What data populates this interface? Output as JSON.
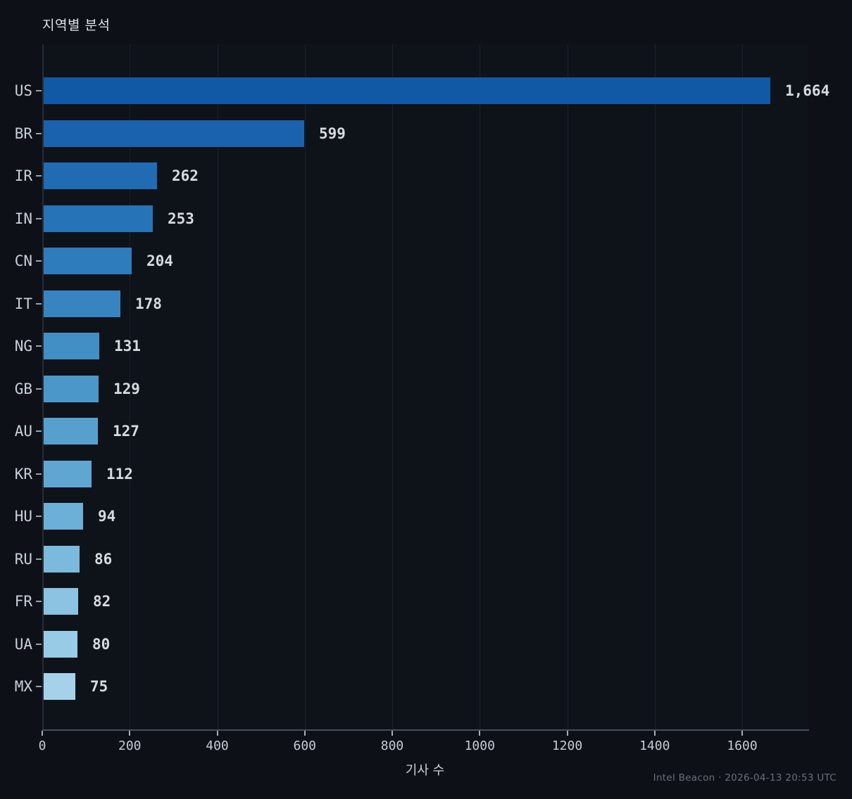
{
  "chart": {
    "title": "지역별 분석",
    "xlabel": "기사 수"
  },
  "footer": {
    "text": "Intel Beacon · 2026-04-13 20:53 UTC"
  },
  "chart_data": {
    "type": "bar",
    "orientation": "horizontal",
    "title": "지역별 분석",
    "xlabel": "기사 수",
    "ylabel": "",
    "categories": [
      "US",
      "BR",
      "IR",
      "IN",
      "CN",
      "IT",
      "NG",
      "GB",
      "AU",
      "KR",
      "HU",
      "RU",
      "FR",
      "UA",
      "MX"
    ],
    "values": [
      1664,
      599,
      262,
      253,
      204,
      178,
      131,
      129,
      127,
      112,
      94,
      86,
      82,
      80,
      75
    ],
    "value_labels": [
      "1,664",
      "599",
      "262",
      "253",
      "204",
      "178",
      "131",
      "129",
      "127",
      "112",
      "94",
      "86",
      "82",
      "80",
      "75"
    ],
    "xticks": [
      0,
      200,
      400,
      600,
      800,
      1000,
      1200,
      1400,
      1600
    ],
    "xtick_labels": [
      "0",
      "200",
      "400",
      "600",
      "800",
      "1000",
      "1200",
      "1400",
      "1600"
    ],
    "xlim": [
      0,
      1750
    ],
    "grid": true,
    "grid_axis": "x",
    "legend": "none",
    "background_color": "#0d1017",
    "gridline_color": "#1c222b",
    "bar_colors": [
      "#1158a5",
      "#1a62ad",
      "#216bb2",
      "#2674b7",
      "#2e7cbc",
      "#3884c1",
      "#428fc6",
      "#4c97ca",
      "#57a0ce",
      "#5fa7d2",
      "#6cb0d7",
      "#7bbadc",
      "#8bc3e1",
      "#98cbe5",
      "#a5d2e9"
    ]
  }
}
